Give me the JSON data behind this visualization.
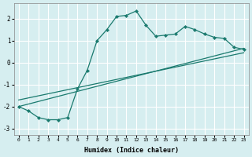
{
  "xlabel": "Humidex (Indice chaleur)",
  "ylabel": "",
  "bg_color": "#d6eef0",
  "grid_color": "#ffffff",
  "line_color": "#1a7a6e",
  "xlim": [
    -0.5,
    23.5
  ],
  "ylim": [
    -3.3,
    2.7
  ],
  "xticks": [
    0,
    1,
    2,
    3,
    4,
    5,
    6,
    7,
    8,
    9,
    10,
    11,
    12,
    13,
    14,
    15,
    16,
    17,
    18,
    19,
    20,
    21,
    22,
    23
  ],
  "yticks": [
    -3,
    -2,
    -1,
    0,
    1,
    2
  ],
  "curve1_x": [
    0,
    1,
    2,
    3,
    4,
    5,
    6,
    7,
    8,
    9,
    10,
    11,
    12,
    13,
    14,
    15,
    16,
    17,
    18,
    19,
    20,
    21,
    22,
    23
  ],
  "curve1_y": [
    -2.0,
    -2.2,
    -2.5,
    -2.6,
    -2.6,
    -2.5,
    -1.2,
    -0.35,
    1.0,
    1.5,
    2.1,
    2.15,
    2.35,
    1.7,
    1.2,
    1.25,
    1.3,
    1.65,
    1.5,
    1.3,
    1.15,
    1.1,
    0.7,
    0.6
  ],
  "line1_x": [
    0,
    23
  ],
  "line1_y": [
    -2.0,
    0.65
  ],
  "line2_x": [
    0,
    23
  ],
  "line2_y": [
    -1.7,
    0.45
  ]
}
